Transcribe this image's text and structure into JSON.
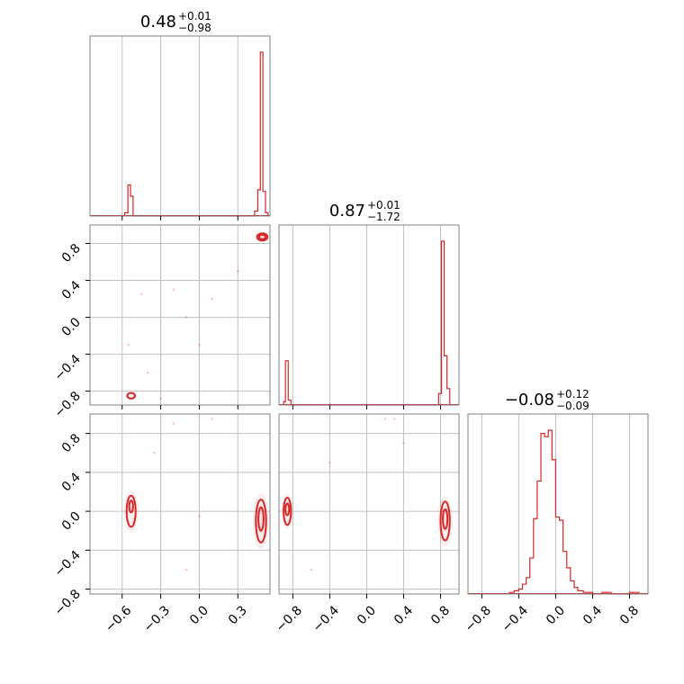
{
  "chart_data": {
    "type": "corner",
    "color": "#d62728",
    "grid": true,
    "panels": {
      "p00": {
        "kind": "histogram",
        "title": {
          "median": "0.48",
          "plus": "+0.01",
          "minus": "−0.98"
        },
        "xlim": [
          -0.85,
          0.55
        ],
        "xticks": [],
        "bins": [
          {
            "x0": -0.58,
            "x1": -0.555,
            "v": 0.02
          },
          {
            "x0": -0.555,
            "x1": -0.535,
            "v": 0.19
          },
          {
            "x0": -0.535,
            "x1": -0.515,
            "v": 0.12
          },
          {
            "x0": -0.515,
            "x1": -0.495,
            "v": 0.0
          },
          {
            "x0": 0.43,
            "x1": 0.455,
            "v": 0.03
          },
          {
            "x0": 0.455,
            "x1": 0.475,
            "v": 0.16
          },
          {
            "x0": 0.475,
            "x1": 0.495,
            "v": 1.0
          },
          {
            "x0": 0.495,
            "x1": 0.515,
            "v": 0.15
          },
          {
            "x0": 0.515,
            "x1": 0.535,
            "v": 0.02
          }
        ]
      },
      "p10": {
        "kind": "scatter-contour",
        "xlim": [
          -0.85,
          0.55
        ],
        "ylim": [
          -0.95,
          1.0
        ],
        "yticks": [
          "0.8",
          "0.4",
          "0.0",
          "−0.4",
          "−0.8"
        ],
        "ytick_values": [
          0.8,
          0.4,
          0.0,
          -0.4,
          -0.8
        ],
        "contours": [
          {
            "cx": 0.49,
            "cy": 0.87,
            "rx": 0.04,
            "ry": 0.04
          },
          {
            "cx": 0.49,
            "cy": 0.87,
            "rx": 0.025,
            "ry": 0.025
          },
          {
            "cx": -0.53,
            "cy": -0.85,
            "rx": 0.03,
            "ry": 0.03
          }
        ],
        "points": [
          [
            -0.2,
            0.3
          ],
          [
            0.3,
            0.5
          ],
          [
            -0.1,
            0.0
          ],
          [
            0.0,
            -0.3
          ],
          [
            -0.4,
            -0.6
          ],
          [
            -0.55,
            -0.3
          ],
          [
            -0.3,
            -0.88
          ],
          [
            0.1,
            0.2
          ],
          [
            -0.45,
            0.25
          ]
        ]
      },
      "p11": {
        "kind": "histogram",
        "title": {
          "median": "0.87",
          "plus": "+0.01",
          "minus": "−1.72"
        },
        "xlim": [
          -0.95,
          1.0
        ],
        "xticks": [],
        "bins": [
          {
            "x0": -0.9,
            "x1": -0.88,
            "v": 0.02
          },
          {
            "x0": -0.88,
            "x1": -0.85,
            "v": 0.27
          },
          {
            "x0": -0.85,
            "x1": -0.82,
            "v": 0.03
          },
          {
            "x0": 0.78,
            "x1": 0.81,
            "v": 0.07
          },
          {
            "x0": 0.81,
            "x1": 0.84,
            "v": 1.0
          },
          {
            "x0": 0.84,
            "x1": 0.87,
            "v": 0.3
          },
          {
            "x0": 0.87,
            "x1": 0.9,
            "v": 0.1
          },
          {
            "x0": 0.9,
            "x1": 0.93,
            "v": 0.0
          }
        ]
      },
      "p20": {
        "kind": "scatter-contour",
        "xlim": [
          -0.85,
          0.55
        ],
        "ylim": [
          -0.85,
          1.0
        ],
        "xticks": [
          "−0.6",
          "−0.3",
          "0.0",
          "0.3"
        ],
        "xtick_values": [
          -0.6,
          -0.3,
          0.0,
          0.3
        ],
        "yticks": [
          "0.8",
          "0.4",
          "0.0",
          "−0.4",
          "−0.8"
        ],
        "ytick_values": [
          0.8,
          0.4,
          0.0,
          -0.4,
          -0.8
        ],
        "contours": [
          {
            "cx": -0.53,
            "cy": 0.0,
            "rx": 0.035,
            "ry": 0.16
          },
          {
            "cx": -0.53,
            "cy": 0.05,
            "rx": 0.015,
            "ry": 0.06
          },
          {
            "cx": 0.48,
            "cy": -0.1,
            "rx": 0.04,
            "ry": 0.22
          },
          {
            "cx": 0.48,
            "cy": -0.08,
            "rx": 0.02,
            "ry": 0.12
          }
        ],
        "points": [
          [
            -0.2,
            0.9
          ],
          [
            0.0,
            -0.05
          ],
          [
            -0.1,
            -0.6
          ],
          [
            -0.35,
            0.6
          ],
          [
            0.1,
            0.95
          ]
        ]
      },
      "p21": {
        "kind": "scatter-contour",
        "xlim": [
          -0.95,
          1.0
        ],
        "ylim": [
          -0.85,
          1.0
        ],
        "xticks": [
          "−0.8",
          "−0.4",
          "0.0",
          "0.4",
          "0.8"
        ],
        "xtick_values": [
          -0.8,
          -0.4,
          0.0,
          0.4,
          0.8
        ],
        "yticks": [],
        "contours": [
          {
            "cx": -0.86,
            "cy": 0.0,
            "rx": 0.04,
            "ry": 0.14
          },
          {
            "cx": -0.86,
            "cy": 0.02,
            "rx": 0.02,
            "ry": 0.06
          },
          {
            "cx": 0.85,
            "cy": -0.1,
            "rx": 0.05,
            "ry": 0.2
          },
          {
            "cx": 0.85,
            "cy": -0.08,
            "rx": 0.025,
            "ry": 0.1
          }
        ],
        "points": [
          [
            -0.4,
            0.5
          ],
          [
            0.2,
            0.95
          ],
          [
            -0.6,
            -0.6
          ],
          [
            0.4,
            0.7
          ],
          [
            0.3,
            0.95
          ]
        ]
      },
      "p22": {
        "kind": "histogram",
        "title": {
          "median": "−0.08",
          "plus": "+0.12",
          "minus": "−0.09"
        },
        "xlim": [
          -0.95,
          1.0
        ],
        "xticks": [
          "−0.8",
          "−0.4",
          "0.0",
          "0.4",
          "0.8"
        ],
        "xtick_values": [
          -0.8,
          -0.4,
          0.0,
          0.4,
          0.8
        ],
        "bins": [
          {
            "x0": -0.5,
            "x1": -0.45,
            "v": 0.01
          },
          {
            "x0": -0.45,
            "x1": -0.4,
            "v": 0.02
          },
          {
            "x0": -0.4,
            "x1": -0.36,
            "v": 0.03
          },
          {
            "x0": -0.36,
            "x1": -0.32,
            "v": 0.06
          },
          {
            "x0": -0.32,
            "x1": -0.28,
            "v": 0.1
          },
          {
            "x0": -0.28,
            "x1": -0.24,
            "v": 0.22
          },
          {
            "x0": -0.24,
            "x1": -0.2,
            "v": 0.46
          },
          {
            "x0": -0.2,
            "x1": -0.16,
            "v": 0.69
          },
          {
            "x0": -0.16,
            "x1": -0.12,
            "v": 0.98
          },
          {
            "x0": -0.12,
            "x1": -0.08,
            "v": 0.96
          },
          {
            "x0": -0.08,
            "x1": -0.04,
            "v": 1.0
          },
          {
            "x0": -0.04,
            "x1": 0.0,
            "v": 0.82
          },
          {
            "x0": 0.0,
            "x1": 0.04,
            "v": 0.47
          },
          {
            "x0": 0.04,
            "x1": 0.08,
            "v": 0.45
          },
          {
            "x0": 0.08,
            "x1": 0.12,
            "v": 0.26
          },
          {
            "x0": 0.12,
            "x1": 0.16,
            "v": 0.16
          },
          {
            "x0": 0.16,
            "x1": 0.2,
            "v": 0.08
          },
          {
            "x0": 0.2,
            "x1": 0.24,
            "v": 0.04
          },
          {
            "x0": 0.24,
            "x1": 0.3,
            "v": 0.02
          },
          {
            "x0": 0.3,
            "x1": 0.4,
            "v": 0.01
          },
          {
            "x0": 0.5,
            "x1": 0.6,
            "v": 0.01
          },
          {
            "x0": 0.8,
            "x1": 0.9,
            "v": 0.01
          }
        ]
      }
    }
  }
}
